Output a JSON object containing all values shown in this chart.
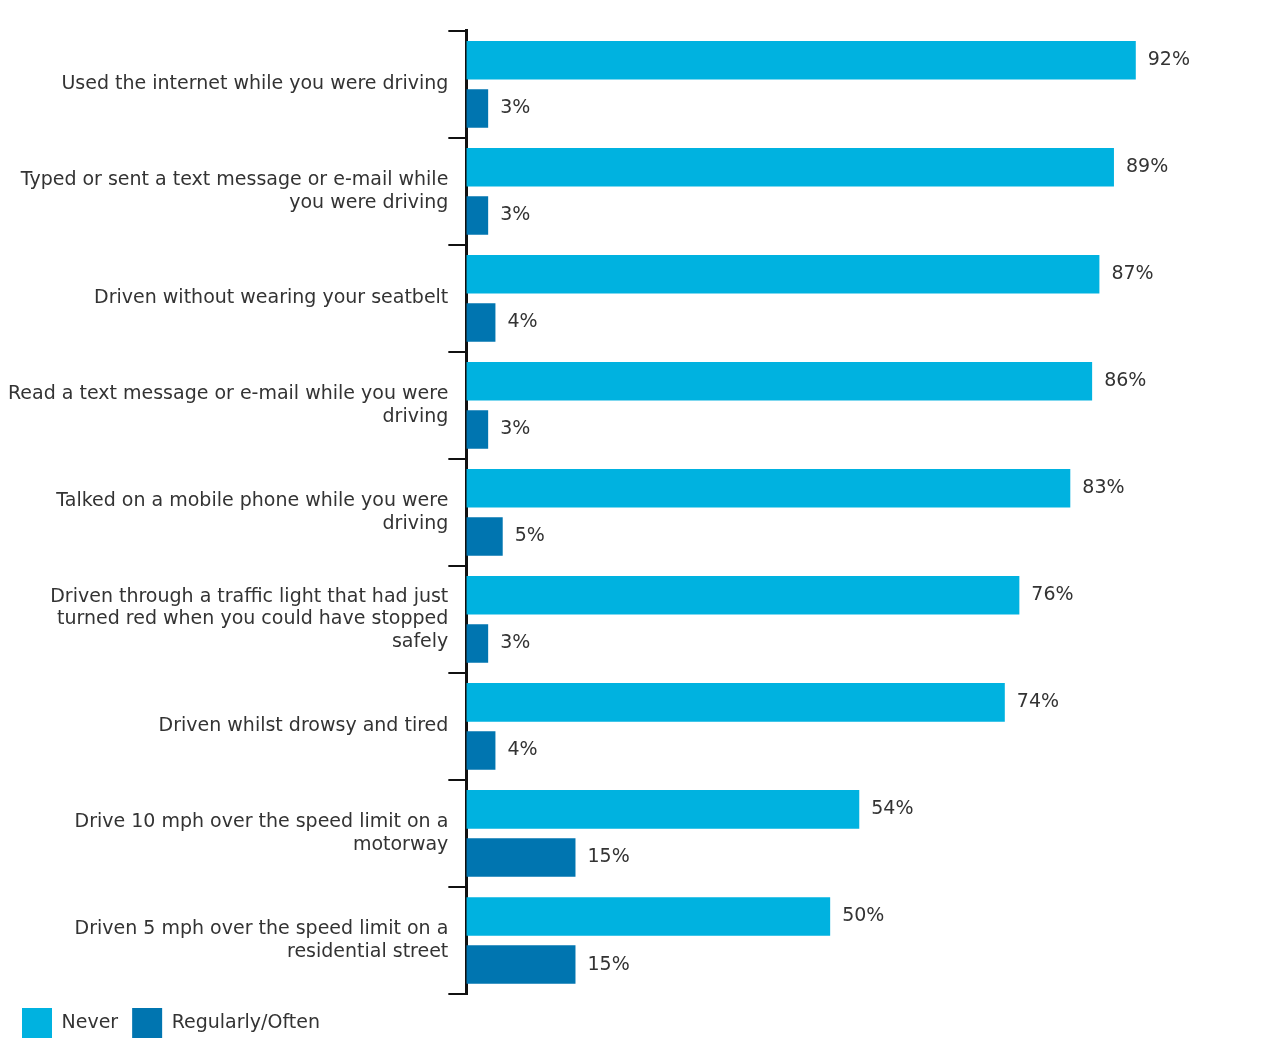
{
  "chart_data": {
    "type": "bar",
    "orientation": "horizontal",
    "categories": [
      "Used the internet while you were driving",
      "Typed or sent a text message or e-mail while you were driving",
      "Driven without wearing your seatbelt",
      "Read a text message or e-mail while you were driving",
      "Talked on a mobile phone while you were driving",
      "Driven through a traffic light that had just turned red when you could have stopped safely",
      "Driven whilst drowsy and tired",
      "Drive 10 mph over the speed limit on a motorway",
      "Driven 5 mph over the speed limit on a residential street"
    ],
    "series": [
      {
        "name": "Never",
        "color": "#00b2e0",
        "values": [
          92,
          89,
          87,
          86,
          83,
          76,
          74,
          54,
          50
        ],
        "value_labels": [
          "92%",
          "89%",
          "87%",
          "86%",
          "83%",
          "76%",
          "74%",
          "54%",
          "50%"
        ]
      },
      {
        "name": "Regularly/Often",
        "color": "#0075b0",
        "values": [
          3,
          3,
          4,
          3,
          5,
          3,
          4,
          15,
          15
        ],
        "value_labels": [
          "3%",
          "3%",
          "4%",
          "3%",
          "5%",
          "3%",
          "4%",
          "15%",
          "15%"
        ]
      }
    ],
    "legend": "bottom left",
    "grid": false
  }
}
